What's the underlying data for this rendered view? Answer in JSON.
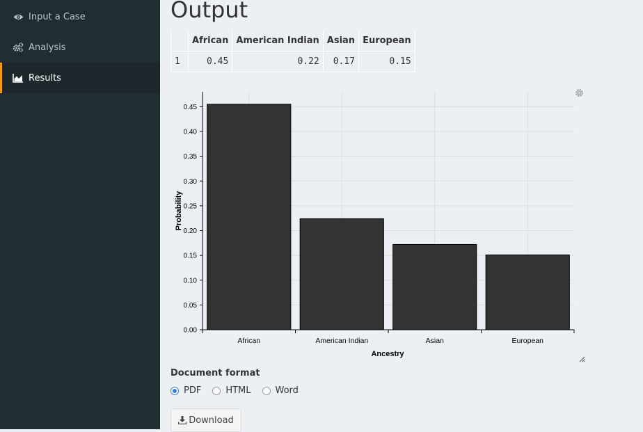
{
  "sidebar": {
    "items": [
      {
        "label": "Input a Case",
        "icon": "eye-icon",
        "active": false
      },
      {
        "label": "Analysis",
        "icon": "gears-icon",
        "active": false
      },
      {
        "label": "Results",
        "icon": "area-chart-icon",
        "active": true
      }
    ],
    "active_color": "#f39c12"
  },
  "main": {
    "title": "Output",
    "table": {
      "headers": [
        "",
        "African",
        "American Indian",
        "Asian",
        "European"
      ],
      "rows": [
        [
          "1",
          "0.45",
          "0.22",
          "0.17",
          "0.15"
        ]
      ]
    },
    "document_format": {
      "label": "Document format",
      "options": [
        "PDF",
        "HTML",
        "Word"
      ],
      "selected": "PDF"
    },
    "download_label": "Download"
  },
  "chart_data": {
    "type": "bar",
    "categories": [
      "African",
      "American Indian",
      "Asian",
      "European"
    ],
    "values": [
      0.455,
      0.224,
      0.172,
      0.151
    ],
    "xlabel": "Ancestry",
    "ylabel": "Probability",
    "ylim": [
      0,
      0.48
    ],
    "yticks": [
      "0.00",
      "0.05",
      "0.10",
      "0.15",
      "0.20",
      "0.25",
      "0.30",
      "0.35",
      "0.40",
      "0.45"
    ],
    "grid": true,
    "bar_color": "#333333"
  }
}
